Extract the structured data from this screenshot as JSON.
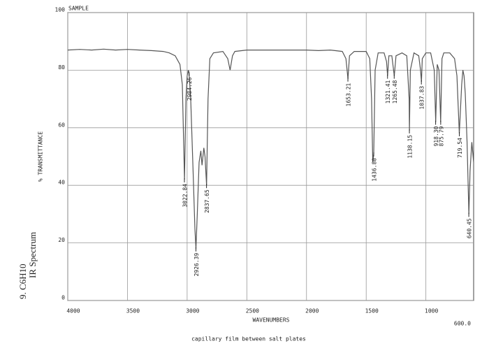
{
  "chart_data": {
    "type": "line",
    "title": "SAMPLE",
    "y_label": "% TRANSMITTANCE",
    "x_label": "WAVENUMBERS",
    "note": "capillary film between salt plates",
    "side_label": [
      "9. C6H10",
      "IR Spectrum"
    ],
    "xlim": [
      4000,
      600
    ],
    "ylim": [
      0,
      100
    ],
    "xticks": [
      4000,
      3500,
      3000,
      2500,
      2000,
      1500,
      1000,
      {
        "value": 600,
        "label": "600.0"
      }
    ],
    "yticks": [
      0,
      20,
      40,
      60,
      80,
      100
    ],
    "grid": true,
    "x": [
      4000,
      3900,
      3800,
      3700,
      3600,
      3500,
      3400,
      3300,
      3200,
      3150,
      3100,
      3060,
      3040,
      3022,
      3010,
      3000,
      2990,
      2984,
      2970,
      2950,
      2935,
      2926,
      2915,
      2900,
      2885,
      2875,
      2860,
      2850,
      2837,
      2825,
      2810,
      2780,
      2700,
      2660,
      2640,
      2620,
      2600,
      2500,
      2400,
      2300,
      2200,
      2100,
      2000,
      1900,
      1800,
      1700,
      1670,
      1653,
      1640,
      1600,
      1500,
      1470,
      1455,
      1445,
      1437,
      1425,
      1400,
      1350,
      1330,
      1321,
      1310,
      1285,
      1265,
      1250,
      1200,
      1160,
      1140,
      1138,
      1130,
      1100,
      1060,
      1045,
      1037,
      1030,
      1000,
      960,
      930,
      918,
      905,
      890,
      876,
      865,
      850,
      800,
      760,
      740,
      720,
      700,
      690,
      680,
      670,
      655,
      640,
      630,
      615,
      600
    ],
    "series": [
      {
        "name": "spectrum",
        "color": "#555555",
        "values": [
          87,
          87.2,
          87,
          87.3,
          87,
          87.2,
          87,
          86.8,
          86.5,
          86,
          85,
          82,
          75,
          42,
          70,
          78,
          80,
          79,
          70,
          45,
          25,
          18,
          30,
          48,
          52,
          47,
          53,
          50,
          40,
          70,
          84,
          86,
          86.5,
          84,
          80,
          85,
          86.5,
          87,
          87,
          87,
          87,
          87,
          87,
          86.8,
          87,
          86.5,
          84,
          77,
          85,
          86.5,
          86.5,
          84,
          70,
          48,
          51,
          80,
          86,
          86,
          83,
          78,
          85,
          85,
          78,
          85,
          86,
          85,
          70,
          59,
          80,
          86,
          85,
          80,
          76,
          84,
          86,
          86,
          80,
          62,
          82,
          80,
          62,
          84,
          86,
          86,
          84,
          78,
          58,
          75,
          80,
          78,
          72,
          55,
          30,
          45,
          55,
          48
        ]
      }
    ],
    "annotations": [
      {
        "text": "3022.84",
        "x": 3022.84,
        "y": 42
      },
      {
        "text": "2984.26",
        "x": 2984.26,
        "y": 79
      },
      {
        "text": "2926.39",
        "x": 2926.39,
        "y": 18
      },
      {
        "text": "2837.65",
        "x": 2837.65,
        "y": 40
      },
      {
        "text": "1653.21",
        "x": 1653.21,
        "y": 77
      },
      {
        "text": "1436.80",
        "x": 1436.8,
        "y": 51
      },
      {
        "text": "1321.41",
        "x": 1321.41,
        "y": 78
      },
      {
        "text": "1265.48",
        "x": 1265.48,
        "y": 78
      },
      {
        "text": "1138.15",
        "x": 1138.15,
        "y": 59
      },
      {
        "text": "1037.83",
        "x": 1037.83,
        "y": 76
      },
      {
        "text": "918.30",
        "x": 918.3,
        "y": 62
      },
      {
        "text": "875.79",
        "x": 875.79,
        "y": 62
      },
      {
        "text": "719.54",
        "x": 719.54,
        "y": 58
      },
      {
        "text": "640.45",
        "x": 640.45,
        "y": 30
      }
    ]
  }
}
